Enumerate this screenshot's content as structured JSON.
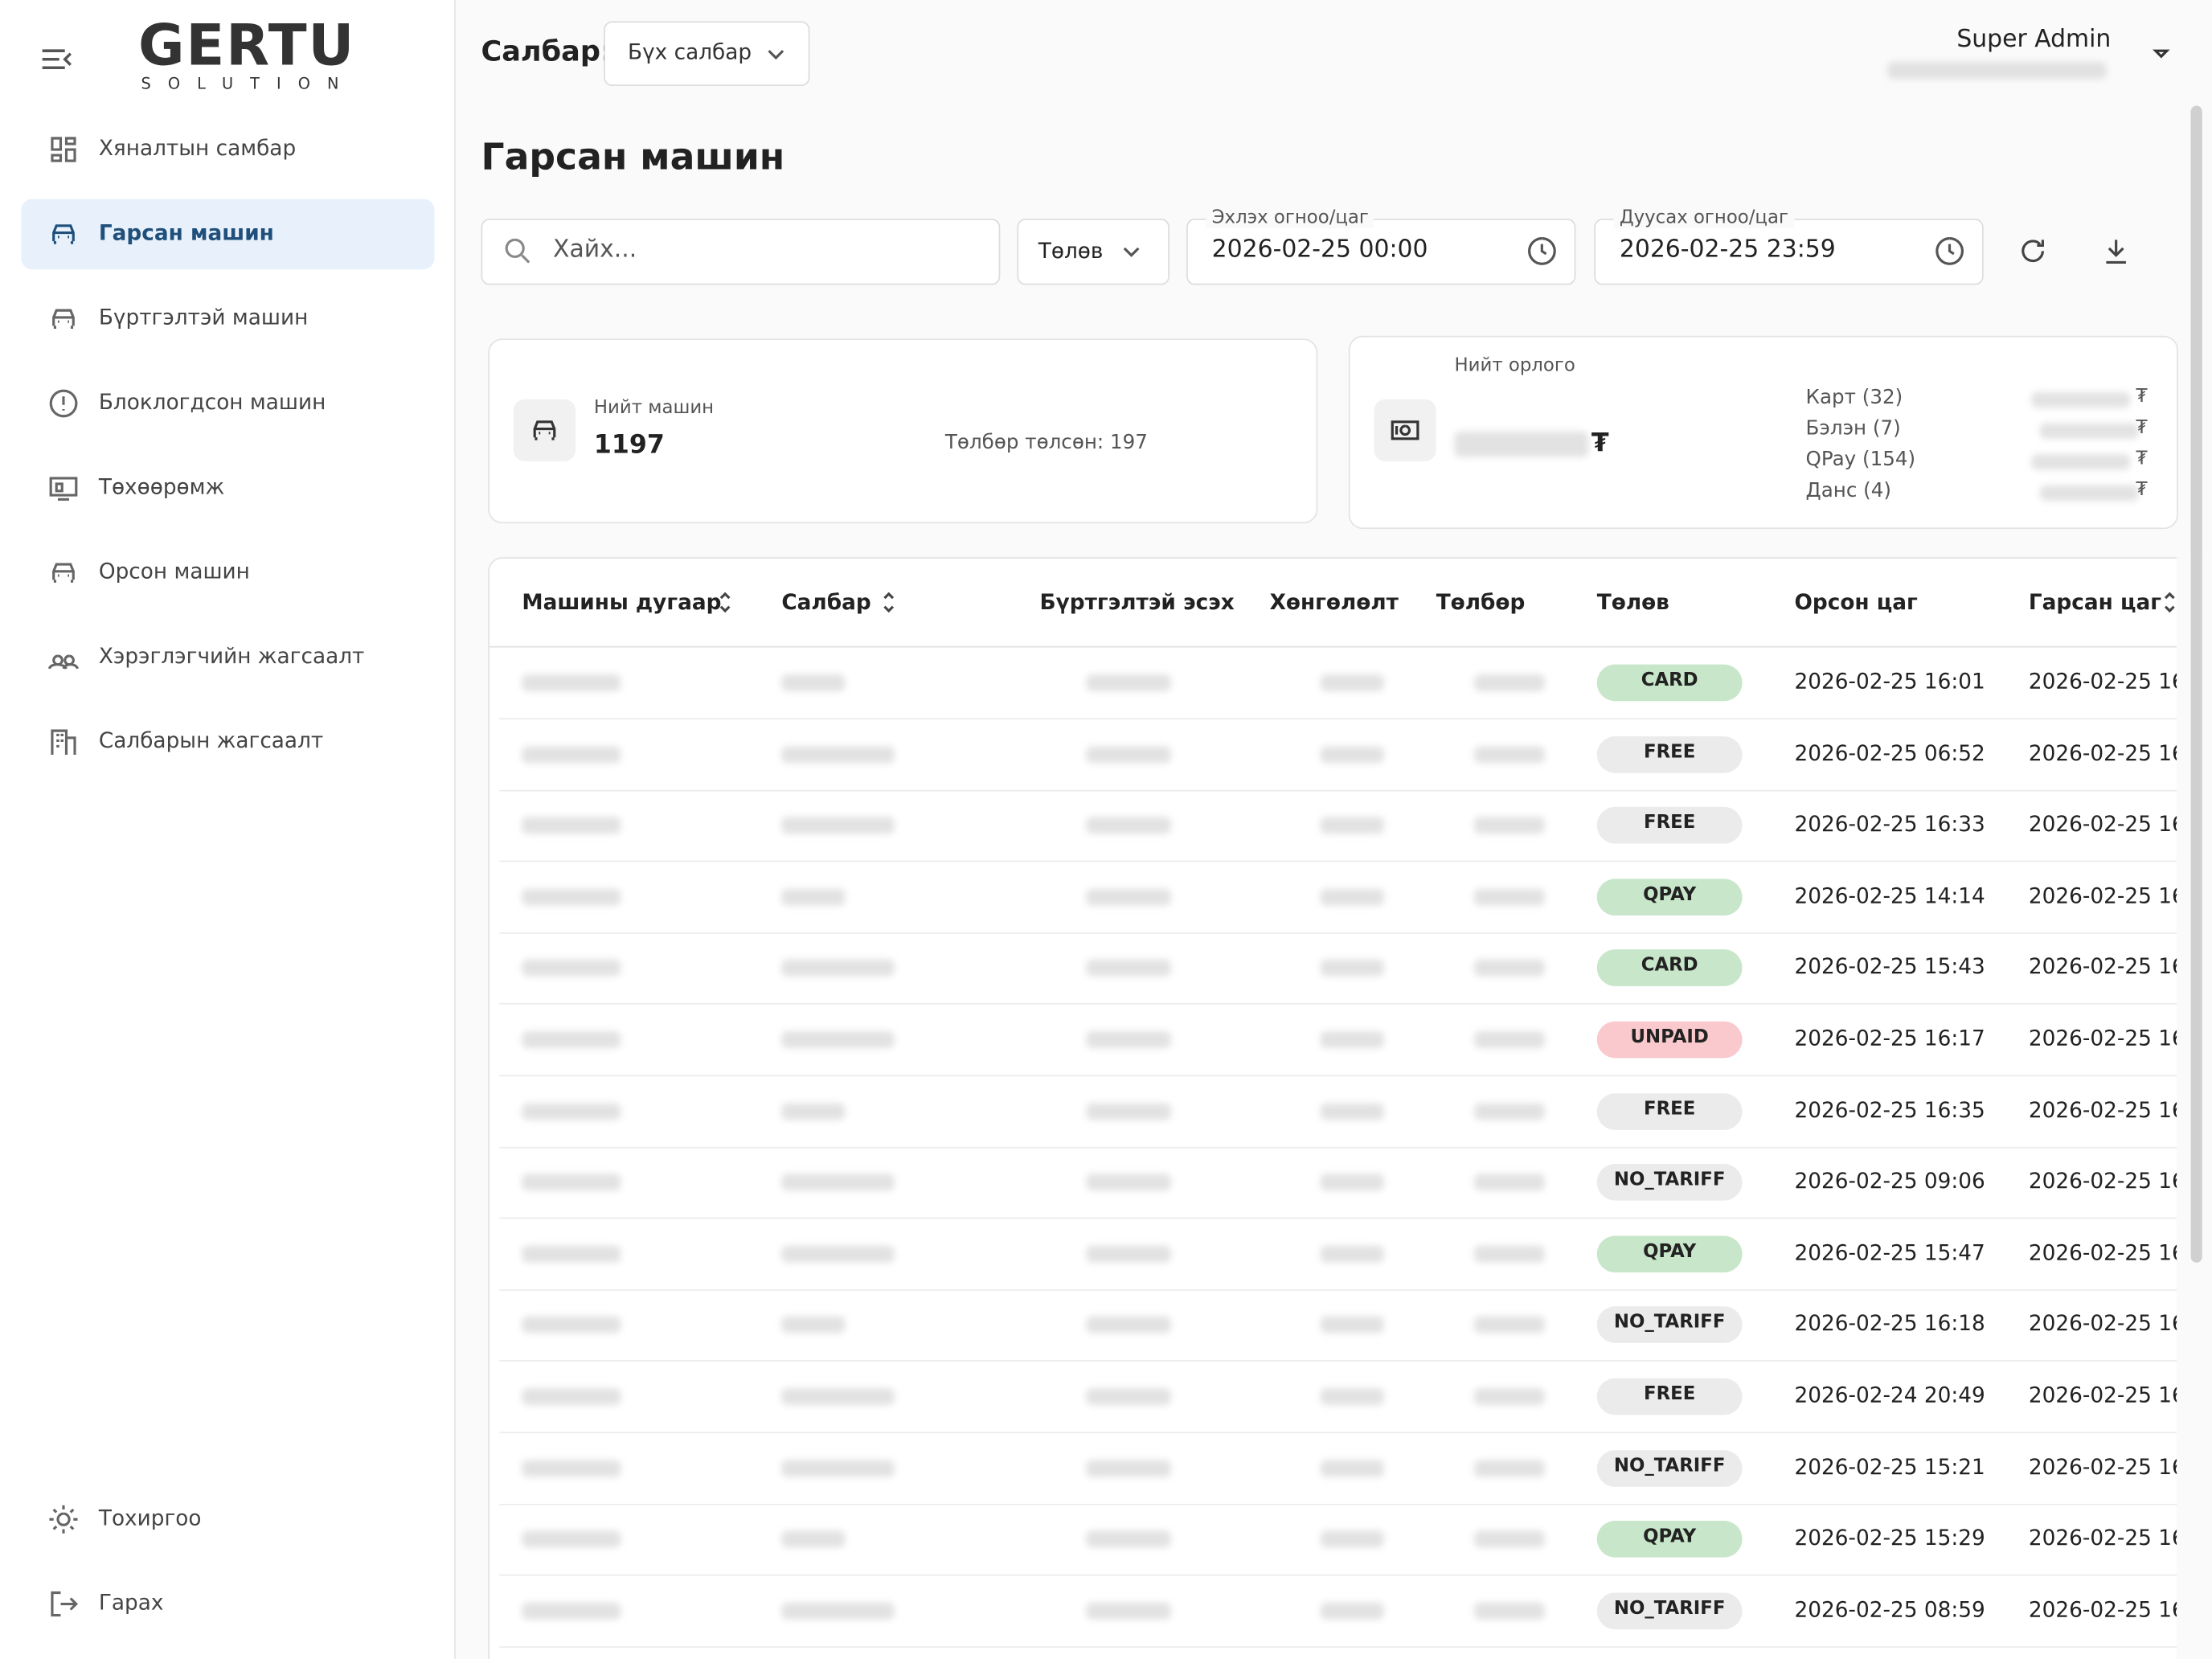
{
  "sidebar": {
    "logo": "GERTU",
    "logo_sub": "SOLUTION",
    "menu": [
      "Хяналтын самбар",
      "Гарсан машин",
      "Бүртгэлтэй машин",
      "Блоклогдсон машин",
      "Төхөөрөмж",
      "Орсон машин",
      "Хэрэглэгчийн жагсаалт",
      "Салбарын жагсаалт"
    ],
    "bottom": [
      "Тохиргоо",
      "Гарах"
    ]
  },
  "header": {
    "branch_label": "Салбар:",
    "branch_select": "Бүх салбар",
    "user": "Super Admin"
  },
  "page_title": "Гарсан машин",
  "filters": {
    "search": "Хайх...",
    "payment": "Төлөв",
    "start_label": "Эхлэх огноо/цаг",
    "start": "2026-02-25 00:00",
    "end_label": "Дуусах огноо/цаг",
    "end": "2026-02-25 23:59"
  },
  "summary": {
    "cars_label": "Нийт машин",
    "cars": 1197,
    "paid": "Төлбөр төлсөн: 197",
    "revenue_label": "Нийт орлого",
    "currency": "₮",
    "breakdown": [
      "Карт (32)",
      "Бэлэн (7)",
      "QPay (154)",
      "Данс (4)"
    ]
  },
  "table": {
    "columns": [
      "Машины дугаар",
      "Салбар",
      "Бүртгэлтэй эсэх",
      "Хөнгөлөлт",
      "Төлбөр",
      "Төлөв",
      "Орсон цаг",
      "Гарсан цаг"
    ],
    "rows": [
      [
        "CARD",
        "2026-02-25 16:01",
        "2026-02-25 16"
      ],
      [
        "FREE",
        "2026-02-25 06:52",
        "2026-02-25 16"
      ],
      [
        "FREE",
        "2026-02-25 16:33",
        "2026-02-25 16"
      ],
      [
        "QPAY",
        "2026-02-25 14:14",
        "2026-02-25 16"
      ],
      [
        "CARD",
        "2026-02-25 15:43",
        "2026-02-25 16"
      ],
      [
        "UNPAID",
        "2026-02-25 16:17",
        "2026-02-25 16"
      ],
      [
        "FREE",
        "2026-02-25 16:35",
        "2026-02-25 16"
      ],
      [
        "NO_TARIFF",
        "2026-02-25 09:06",
        "2026-02-25 16"
      ],
      [
        "QPAY",
        "2026-02-25 15:47",
        "2026-02-25 16"
      ],
      [
        "NO_TARIFF",
        "2026-02-25 16:18",
        "2026-02-25 16"
      ],
      [
        "FREE",
        "2026-02-24 20:49",
        "2026-02-25 16"
      ],
      [
        "NO_TARIFF",
        "2026-02-25 15:21",
        "2026-02-25 16"
      ],
      [
        "QPAY",
        "2026-02-25 15:29",
        "2026-02-25 16"
      ],
      [
        "NO_TARIFF",
        "2026-02-25 08:59",
        "2026-02-25 16"
      ]
    ]
  }
}
